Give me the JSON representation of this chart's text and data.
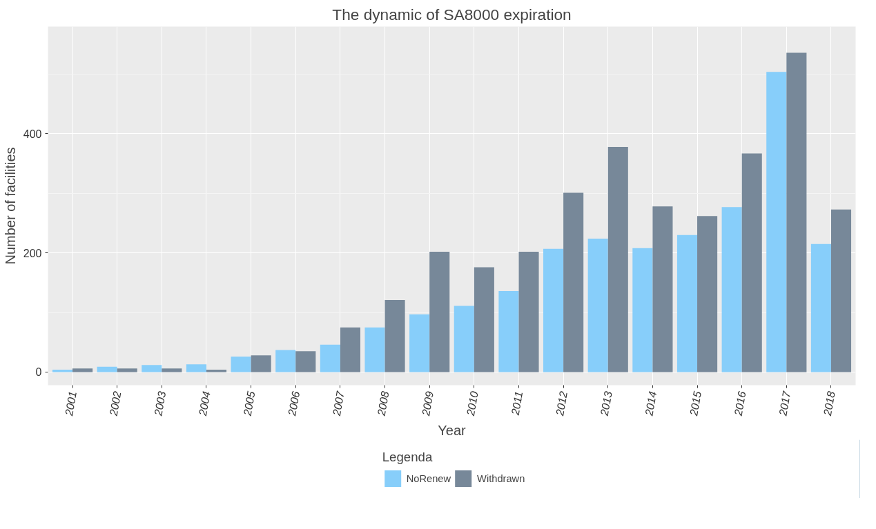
{
  "chart_data": {
    "type": "bar",
    "title": "The dynamic of SA8000 expiration",
    "xlabel": "Year",
    "ylabel": "Number of facilities",
    "legend_title": "Legenda",
    "categories": [
      "2001",
      "2002",
      "2003",
      "2004",
      "2005",
      "2006",
      "2007",
      "2008",
      "2009",
      "2010",
      "2011",
      "2012",
      "2013",
      "2014",
      "2015",
      "2016",
      "2017",
      "2018"
    ],
    "series": [
      {
        "name": "NoRenew",
        "color": "#87cefa",
        "values": [
          4,
          9,
          12,
          13,
          26,
          37,
          46,
          75,
          97,
          111,
          136,
          207,
          224,
          208,
          230,
          277,
          504,
          215
        ]
      },
      {
        "name": "Withdrawn",
        "color": "#778899",
        "values": [
          6,
          6,
          6,
          4,
          28,
          35,
          75,
          121,
          202,
          176,
          202,
          301,
          378,
          278,
          262,
          367,
          536,
          273
        ]
      }
    ],
    "ylim": [
      -22,
      580
    ],
    "yticks": [
      0,
      200,
      400
    ],
    "grid": true,
    "legend": "bottom"
  }
}
